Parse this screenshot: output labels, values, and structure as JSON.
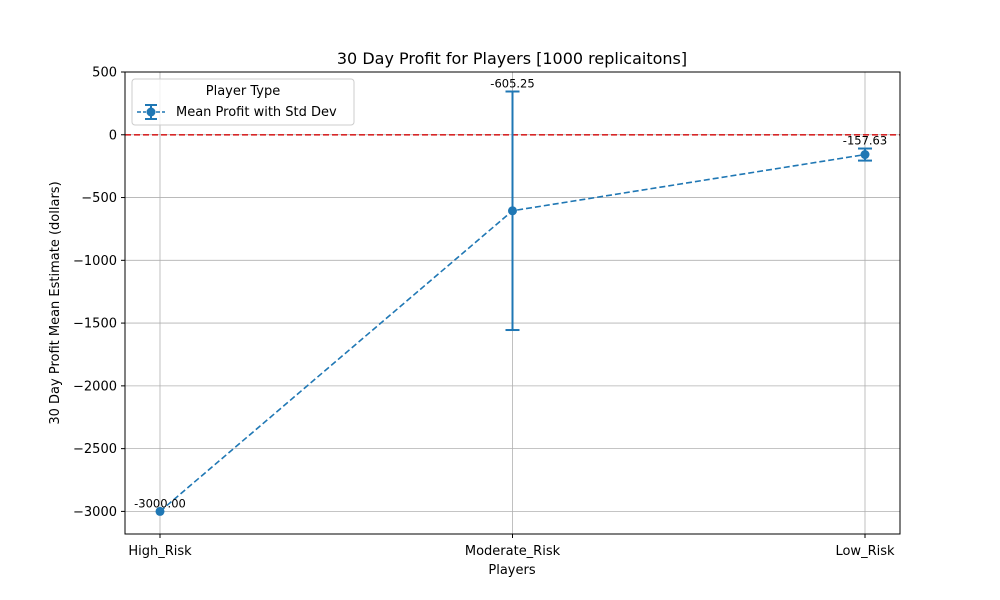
{
  "chart_data": {
    "type": "line",
    "title": "30 Day Profit for Players [1000 replicaitons]",
    "xlabel": "Players",
    "ylabel": "30 Day Profit Mean Estimate (dollars)",
    "categories": [
      "High_Risk",
      "Moderate_Risk",
      "Low_Risk"
    ],
    "series": [
      {
        "name": "Mean Profit with Std Dev",
        "values": [
          -3000.0,
          -605.25,
          -157.63
        ],
        "std_dev": [
          0,
          950,
          48
        ],
        "data_labels": [
          "-3000.00",
          "-605.25",
          "-157.63"
        ],
        "line_style": "dashed",
        "marker": "circle"
      }
    ],
    "ylim": [
      -3180,
      500
    ],
    "yticks": [
      500,
      0,
      -500,
      -1000,
      -1500,
      -2000,
      -2500,
      -3000
    ],
    "ytick_labels": [
      "500",
      "0",
      "−500",
      "−1000",
      "−1500",
      "−2000",
      "−2500",
      "−3000"
    ],
    "reference_line": {
      "y": 0,
      "color": "#d62728",
      "style": "dashed"
    },
    "grid": true,
    "legend": {
      "title": "Player Type",
      "placement": "top-left"
    },
    "colors": {
      "series": "#1f77b4",
      "reference": "#d62728",
      "grid": "#b0b0b0"
    }
  }
}
